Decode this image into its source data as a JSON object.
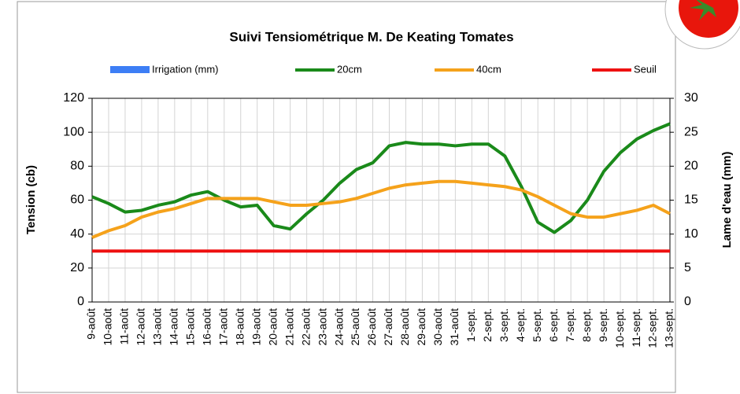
{
  "chart_data": {
    "type": "line",
    "title": "Suivi Tensiométrique M. De Keating Tomates",
    "y_label": "Tension (cb)",
    "y2_label": "Lame d'eau (mm)",
    "categories": [
      "9-août",
      "10-août",
      "11-août",
      "12-août",
      "13-août",
      "14-août",
      "15-août",
      "16-août",
      "17-août",
      "18-août",
      "19-août",
      "20-août",
      "21-août",
      "22-août",
      "23-août",
      "24-août",
      "25-août",
      "26-août",
      "27-août",
      "28-août",
      "29-août",
      "30-août",
      "31-août",
      "1-sept.",
      "2-sept.",
      "3-sept.",
      "4-sept.",
      "5-sept.",
      "6-sept.",
      "7-sept.",
      "8-sept.",
      "9-sept.",
      "10-sept.",
      "11-sept.",
      "12-sept.",
      "13-sept."
    ],
    "series": [
      {
        "name": "Irrigation (mm)",
        "color": "#3d7ef5",
        "axis": "y2"
      },
      {
        "name": "20cm",
        "color": "#1a8a1a",
        "values": [
          62,
          58,
          53,
          54,
          57,
          59,
          63,
          65,
          60,
          56,
          57,
          45,
          43,
          52,
          60,
          70,
          78,
          82,
          92,
          94,
          93,
          93,
          92,
          93,
          93,
          86,
          68,
          47,
          41,
          48,
          60,
          77,
          88,
          96,
          101,
          105
        ]
      },
      {
        "name": "40cm",
        "color": "#f5a21b",
        "values": [
          38,
          42,
          45,
          50,
          53,
          55,
          58,
          61,
          61,
          61,
          61,
          59,
          57,
          57,
          58,
          59,
          61,
          64,
          67,
          69,
          70,
          71,
          71,
          70,
          69,
          68,
          66,
          62,
          57,
          52,
          50,
          50,
          52,
          54,
          57,
          52
        ]
      },
      {
        "name": "Seuil",
        "color": "#ee1111",
        "values": [
          30,
          30,
          30,
          30,
          30,
          30,
          30,
          30,
          30,
          30,
          30,
          30,
          30,
          30,
          30,
          30,
          30,
          30,
          30,
          30,
          30,
          30,
          30,
          30,
          30,
          30,
          30,
          30,
          30,
          30,
          30,
          30,
          30,
          30,
          30,
          30
        ]
      }
    ],
    "ylim": [
      0,
      120
    ],
    "yticks": [
      0,
      20,
      40,
      60,
      80,
      100,
      120
    ],
    "y2lim": [
      0,
      30
    ],
    "y2ticks": [
      0,
      5,
      10,
      15,
      20,
      25,
      30
    ],
    "grid": true
  }
}
